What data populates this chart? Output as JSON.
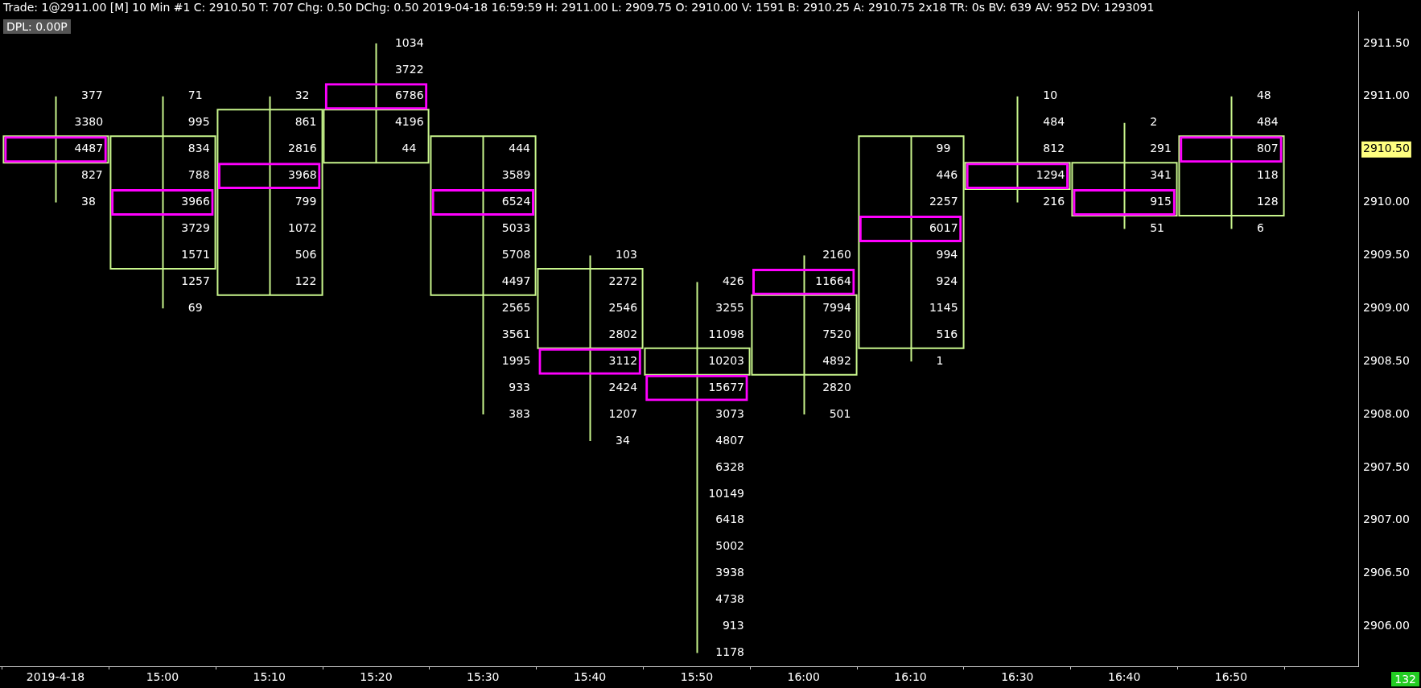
{
  "chart_data": {
    "type": "candlestick",
    "title": "Trade: 1@2911.00 [M] 10 Min #1 C: 2910.50 T: 707 Chg: 0.50 DChg: 0.50 2019-04-18 16:59:59 H: 2911.00 L: 2909.75 O: 2910.00 V: 1591 B: 2910.25 A: 2910.75 2x18 TR: 0s BV: 639 AV: 952 DV: 1293091",
    "categories": [
      "2019-4-18",
      "15:00",
      "15:10",
      "15:20",
      "15:30",
      "15:40",
      "15:50",
      "16:00",
      "16:10",
      "16:30",
      "16:40",
      "16:50"
    ],
    "color": "#c8f58c",
    "ohlc": [
      [
        2910.375,
        2911.0,
        2910.0,
        2910.625
      ],
      [
        2909.375,
        2911.0,
        2909.0,
        2910.625
      ],
      [
        2909.125,
        2911.0,
        2909.125,
        2910.875
      ],
      [
        2910.375,
        2911.5,
        2910.375,
        2910.875
      ],
      [
        2909.125,
        2910.625,
        2908.0,
        2910.625
      ],
      [
        2908.625,
        2909.5,
        2907.75,
        2909.375
      ],
      [
        2908.375,
        2909.25,
        2905.75,
        2908.625
      ],
      [
        2908.375,
        2909.5,
        2908.0,
        2909.125
      ],
      [
        2908.625,
        2910.625,
        2908.5,
        2910.625
      ],
      [
        2910.125,
        2911.0,
        2910.0,
        2910.375
      ],
      [
        2909.875,
        2910.75,
        2909.75,
        2910.375
      ],
      [
        2909.875,
        2911.0,
        2909.75,
        2910.625
      ]
    ],
    "series": [
      {
        "type": "bar",
        "color": "#ff00ff",
        "values": [
          0.25,
          0.25,
          0.25,
          0.25,
          0.25,
          0.25,
          0.25,
          0.25,
          0.25,
          0.25,
          0.25,
          0.25
        ],
        "base": [
          2910.375,
          2909.875,
          2910.125,
          2910.875,
          2909.875,
          2908.375,
          2908.125,
          2909.125,
          2909.625,
          2910.125,
          2909.875,
          2910.375
        ]
      }
    ],
    "ylim": [
      2905.625,
      2911.8
    ],
    "yticks": [
      {
        "value": 2906,
        "label": "2906.00"
      },
      {
        "value": 2906.5,
        "label": "2906.50"
      },
      {
        "value": 2907,
        "label": "2907.00"
      },
      {
        "value": 2907.5,
        "label": "2907.50"
      },
      {
        "value": 2908,
        "label": "2908.00"
      },
      {
        "value": 2908.5,
        "label": "2908.50"
      },
      {
        "value": 2909,
        "label": "2909.00"
      },
      {
        "value": 2909.5,
        "label": "2909.50"
      },
      {
        "value": 2910,
        "label": "2910.00"
      },
      {
        "value": 2910.5,
        "label": "2910.50"
      },
      {
        "value": 2911,
        "label": "2911.00"
      },
      {
        "value": 2911.5,
        "label": "2911.50"
      }
    ],
    "annotations": [
      "DPL: 0.00P",
      "132",
      {
        "text": "377",
        "x": "2019-4-18",
        "y": 2911.0
      },
      {
        "text": "3380",
        "x": "2019-4-18",
        "y": 2910.75
      },
      {
        "text": "4487",
        "x": "2019-4-18",
        "y": 2910.5
      },
      {
        "text": "827",
        "x": "2019-4-18",
        "y": 2910.25
      },
      {
        "text": "38",
        "x": "2019-4-18",
        "y": 2910.0
      },
      {
        "text": "71",
        "x": "15:00",
        "y": 2911.0
      },
      {
        "text": "995",
        "x": "15:00",
        "y": 2910.75
      },
      {
        "text": "834",
        "x": "15:00",
        "y": 2910.5
      },
      {
        "text": "788",
        "x": "15:00",
        "y": 2910.25
      },
      {
        "text": "3966",
        "x": "15:00",
        "y": 2910.0
      },
      {
        "text": "3729",
        "x": "15:00",
        "y": 2909.75
      },
      {
        "text": "1571",
        "x": "15:00",
        "y": 2909.5
      },
      {
        "text": "1257",
        "x": "15:00",
        "y": 2909.25
      },
      {
        "text": "69",
        "x": "15:00",
        "y": 2909.0
      },
      {
        "text": "32",
        "x": "15:10",
        "y": 2911.0
      },
      {
        "text": "861",
        "x": "15:10",
        "y": 2910.75
      },
      {
        "text": "2816",
        "x": "15:10",
        "y": 2910.5
      },
      {
        "text": "3968",
        "x": "15:10",
        "y": 2910.25
      },
      {
        "text": "799",
        "x": "15:10",
        "y": 2910.0
      },
      {
        "text": "1072",
        "x": "15:10",
        "y": 2909.75
      },
      {
        "text": "506",
        "x": "15:10",
        "y": 2909.5
      },
      {
        "text": "122",
        "x": "15:10",
        "y": 2909.25
      },
      {
        "text": "1034",
        "x": "15:20",
        "y": 2911.5
      },
      {
        "text": "3722",
        "x": "15:20",
        "y": 2911.25
      },
      {
        "text": "6786",
        "x": "15:20",
        "y": 2911.0
      },
      {
        "text": "4196",
        "x": "15:20",
        "y": 2910.75
      },
      {
        "text": "44",
        "x": "15:20",
        "y": 2910.5
      },
      {
        "text": "444",
        "x": "15:30",
        "y": 2910.5
      },
      {
        "text": "3589",
        "x": "15:30",
        "y": 2910.25
      },
      {
        "text": "6524",
        "x": "15:30",
        "y": 2910.0
      },
      {
        "text": "5033",
        "x": "15:30",
        "y": 2909.75
      },
      {
        "text": "5708",
        "x": "15:30",
        "y": 2909.5
      },
      {
        "text": "4497",
        "x": "15:30",
        "y": 2909.25
      },
      {
        "text": "2565",
        "x": "15:30",
        "y": 2909.0
      },
      {
        "text": "3561",
        "x": "15:30",
        "y": 2908.75
      },
      {
        "text": "1995",
        "x": "15:30",
        "y": 2908.5
      },
      {
        "text": "933",
        "x": "15:30",
        "y": 2908.25
      },
      {
        "text": "383",
        "x": "15:30",
        "y": 2908.0
      },
      {
        "text": "103",
        "x": "15:40",
        "y": 2909.5
      },
      {
        "text": "2272",
        "x": "15:40",
        "y": 2909.25
      },
      {
        "text": "2546",
        "x": "15:40",
        "y": 2909.0
      },
      {
        "text": "2802",
        "x": "15:40",
        "y": 2908.75
      },
      {
        "text": "3112",
        "x": "15:40",
        "y": 2908.5
      },
      {
        "text": "2424",
        "x": "15:40",
        "y": 2908.25
      },
      {
        "text": "1207",
        "x": "15:40",
        "y": 2908.0
      },
      {
        "text": "34",
        "x": "15:40",
        "y": 2907.75
      },
      {
        "text": "426",
        "x": "15:50",
        "y": 2909.25
      },
      {
        "text": "3255",
        "x": "15:50",
        "y": 2909.0
      },
      {
        "text": "11098",
        "x": "15:50",
        "y": 2908.75
      },
      {
        "text": "10203",
        "x": "15:50",
        "y": 2908.5
      },
      {
        "text": "15677",
        "x": "15:50",
        "y": 2908.25
      },
      {
        "text": "3073",
        "x": "15:50",
        "y": 2908.0
      },
      {
        "text": "4807",
        "x": "15:50",
        "y": 2907.75
      },
      {
        "text": "6328",
        "x": "15:50",
        "y": 2907.5
      },
      {
        "text": "10149",
        "x": "15:50",
        "y": 2907.25
      },
      {
        "text": "6418",
        "x": "15:50",
        "y": 2907.0
      },
      {
        "text": "5002",
        "x": "15:50",
        "y": 2906.75
      },
      {
        "text": "3938",
        "x": "15:50",
        "y": 2906.5
      },
      {
        "text": "4738",
        "x": "15:50",
        "y": 2906.25
      },
      {
        "text": "913",
        "x": "15:50",
        "y": 2906.0
      },
      {
        "text": "1178",
        "x": "15:50",
        "y": 2905.75
      },
      {
        "text": "2160",
        "x": "16:00",
        "y": 2909.5
      },
      {
        "text": "11664",
        "x": "16:00",
        "y": 2909.25
      },
      {
        "text": "7994",
        "x": "16:00",
        "y": 2909.0
      },
      {
        "text": "7520",
        "x": "16:00",
        "y": 2908.75
      },
      {
        "text": "4892",
        "x": "16:00",
        "y": 2908.5
      },
      {
        "text": "2820",
        "x": "16:00",
        "y": 2908.25
      },
      {
        "text": "501",
        "x": "16:00",
        "y": 2908.0
      },
      {
        "text": "99",
        "x": "16:10",
        "y": 2910.5
      },
      {
        "text": "446",
        "x": "16:10",
        "y": 2910.25
      },
      {
        "text": "2257",
        "x": "16:10",
        "y": 2910.0
      },
      {
        "text": "6017",
        "x": "16:10",
        "y": 2909.75
      },
      {
        "text": "994",
        "x": "16:10",
        "y": 2909.5
      },
      {
        "text": "924",
        "x": "16:10",
        "y": 2909.25
      },
      {
        "text": "1145",
        "x": "16:10",
        "y": 2909.0
      },
      {
        "text": "516",
        "x": "16:10",
        "y": 2908.75
      },
      {
        "text": "1",
        "x": "16:10",
        "y": 2908.5
      },
      {
        "text": "10",
        "x": "16:30",
        "y": 2911.0
      },
      {
        "text": "484",
        "x": "16:30",
        "y": 2910.75
      },
      {
        "text": "812",
        "x": "16:30",
        "y": 2910.5
      },
      {
        "text": "1294",
        "x": "16:30",
        "y": 2910.25
      },
      {
        "text": "216",
        "x": "16:30",
        "y": 2910.0
      },
      {
        "text": "2",
        "x": "16:40",
        "y": 2910.75
      },
      {
        "text": "291",
        "x": "16:40",
        "y": 2910.5
      },
      {
        "text": "341",
        "x": "16:40",
        "y": 2910.25
      },
      {
        "text": "915",
        "x": "16:40",
        "y": 2910.0
      },
      {
        "text": "51",
        "x": "16:40",
        "y": 2909.75
      },
      {
        "text": "48",
        "x": "16:50",
        "y": 2911.0
      },
      {
        "text": "484",
        "x": "16:50",
        "y": 2910.75
      },
      {
        "text": "807",
        "x": "16:50",
        "y": 2910.5
      },
      {
        "text": "118",
        "x": "16:50",
        "y": 2910.25
      },
      {
        "text": "128",
        "x": "16:50",
        "y": 2910.0
      },
      {
        "text": "6",
        "x": "16:50",
        "y": 2909.75
      }
    ],
    "grid": false,
    "legend": false
  }
}
